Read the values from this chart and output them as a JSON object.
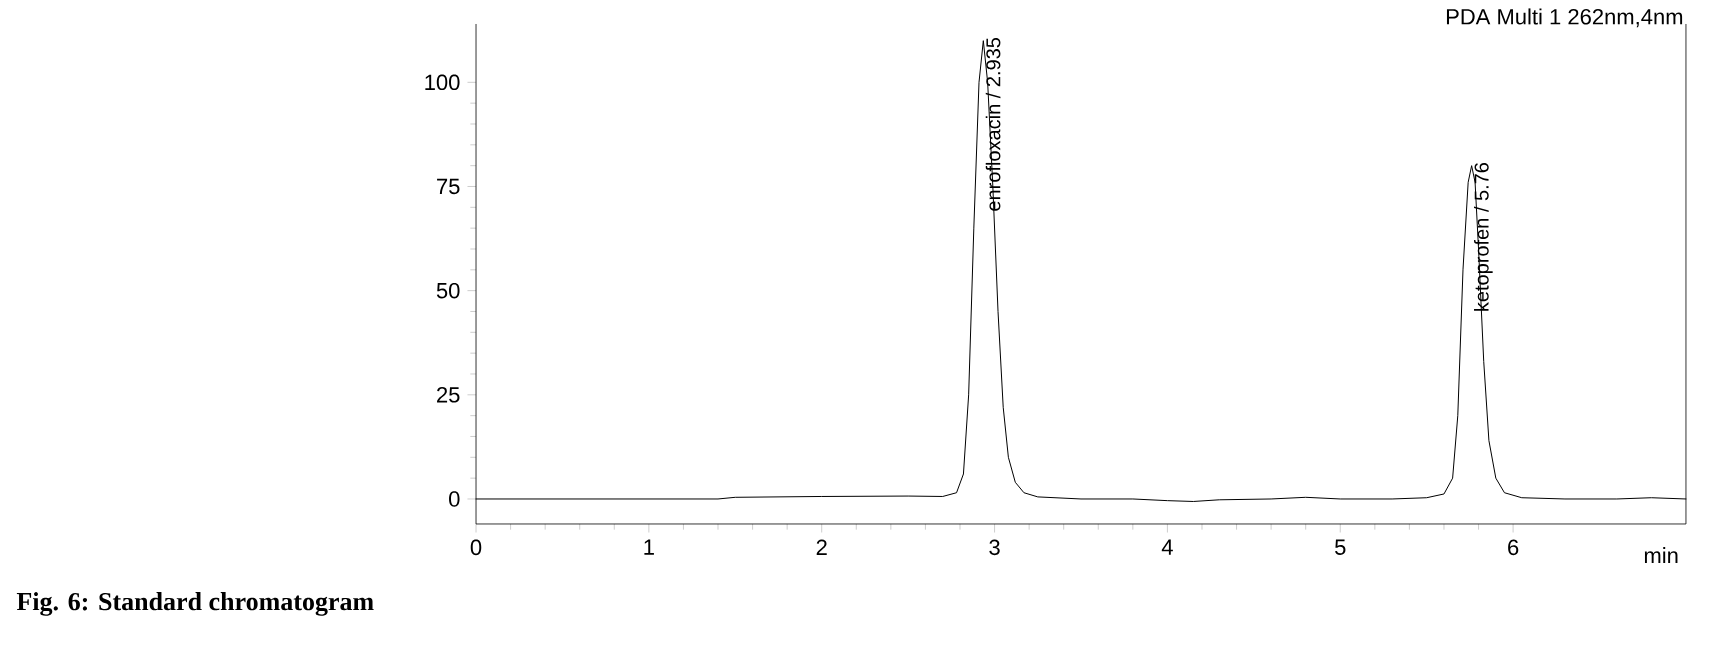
{
  "chart_data": {
    "type": "line",
    "x": [
      0,
      0.5,
      1.0,
      1.4,
      1.5,
      2.0,
      2.5,
      2.7,
      2.78,
      2.82,
      2.85,
      2.88,
      2.91,
      2.935,
      2.96,
      2.99,
      3.02,
      3.05,
      3.08,
      3.12,
      3.17,
      3.25,
      3.5,
      3.8,
      4.0,
      4.15,
      4.3,
      4.6,
      4.8,
      5.0,
      5.3,
      5.5,
      5.6,
      5.65,
      5.68,
      5.71,
      5.74,
      5.76,
      5.78,
      5.8,
      5.83,
      5.86,
      5.9,
      5.95,
      6.05,
      6.3,
      6.6,
      6.8,
      7.0
    ],
    "series": [
      {
        "color": "#000000",
        "values": [
          0,
          0,
          0,
          0,
          0.4,
          0.6,
          0.7,
          0.6,
          1.5,
          6,
          25,
          65,
          100,
          110,
          100,
          75,
          45,
          22,
          10,
          4,
          1.5,
          0.5,
          0,
          0,
          -0.4,
          -0.6,
          -0.2,
          0,
          0.4,
          0,
          0,
          0.3,
          1.2,
          5,
          20,
          55,
          76,
          80,
          76,
          60,
          33,
          14,
          5,
          1.5,
          0.3,
          0,
          0,
          0.3,
          0
        ]
      }
    ],
    "xlim": [
      0,
      7
    ],
    "ylim": [
      -6,
      114
    ],
    "xticks": [
      0,
      1,
      2,
      3,
      4,
      5,
      6
    ],
    "yticks": [
      0,
      25,
      50,
      75,
      100
    ],
    "xlabel": "min",
    "annotations": [
      "PDA Multi 1 262nm,4nm",
      "Fig. 6: Standard chromatogram",
      {
        "text": "enrofloxacin / 2.935",
        "x": 2.935,
        "y": 110
      },
      {
        "text": "ketoprofen / 5.76",
        "x": 5.76,
        "y": 80
      }
    ],
    "grid": false,
    "marker": "none",
    "line_style": "solid"
  }
}
